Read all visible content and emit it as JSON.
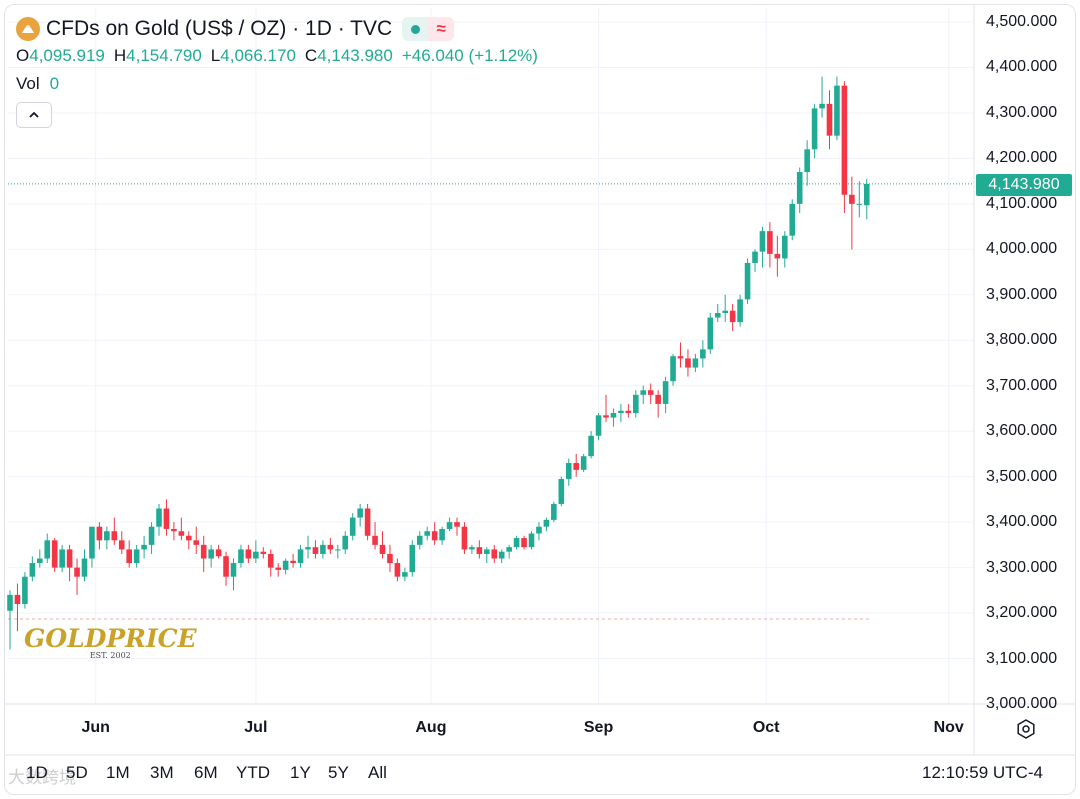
{
  "header": {
    "title": "CFDs on Gold (US$ / OZ) · 1D · TVC",
    "ohlc": [
      {
        "key": "O",
        "value": "4,095.919"
      },
      {
        "key": "H",
        "value": "4,154.790"
      },
      {
        "key": "L",
        "value": "4,066.170"
      },
      {
        "key": "C",
        "value": "4,143.980"
      }
    ],
    "change": "+46.040 (+1.12%)",
    "vol_label": "Vol",
    "vol_value": "0",
    "wave_glyph": "≈"
  },
  "price_tag": "4,143.980",
  "logo": {
    "text": "GOLDPRICE",
    "sub": "EST. 2002"
  },
  "ranges": [
    "1D",
    "5D",
    "1M",
    "3M",
    "6M",
    "YTD",
    "1Y",
    "5Y",
    "All"
  ],
  "clock": "12:10:59 UTC-4",
  "watermark": "大数跨境",
  "colors": {
    "up": "#22ab94",
    "down": "#f23645",
    "grid": "#f0f3fa",
    "text": "#131722"
  },
  "chart_data": {
    "type": "candlestick",
    "title": "CFDs on Gold (US$ / OZ) · 1D · TVC",
    "y_ticks": [
      "4,500.000",
      "4,400.000",
      "4,300.000",
      "4,200.000",
      "4,100.000",
      "4,000.000",
      "3,900.000",
      "3,800.000",
      "3,700.000",
      "3,600.000",
      "3,500.000",
      "3,400.000",
      "3,300.000",
      "3,200.000",
      "3,100.000",
      "3,000.000"
    ],
    "x_ticks": [
      "Jun",
      "Jul",
      "Aug",
      "Sep",
      "Oct",
      "Nov"
    ],
    "ylim": [
      3000,
      4500
    ],
    "last_price": 4143.98,
    "reference_level": 3187,
    "candles": [
      [
        3205,
        3250,
        3120,
        3240
      ],
      [
        3240,
        3265,
        3160,
        3220
      ],
      [
        3220,
        3290,
        3210,
        3280
      ],
      [
        3280,
        3325,
        3270,
        3310
      ],
      [
        3310,
        3340,
        3300,
        3320
      ],
      [
        3320,
        3375,
        3310,
        3360
      ],
      [
        3360,
        3365,
        3290,
        3300
      ],
      [
        3300,
        3350,
        3290,
        3340
      ],
      [
        3340,
        3350,
        3270,
        3300
      ],
      [
        3300,
        3320,
        3240,
        3280
      ],
      [
        3280,
        3340,
        3270,
        3320
      ],
      [
        3320,
        3390,
        3300,
        3390
      ],
      [
        3390,
        3400,
        3340,
        3360
      ],
      [
        3360,
        3390,
        3340,
        3380
      ],
      [
        3380,
        3410,
        3350,
        3360
      ],
      [
        3360,
        3380,
        3330,
        3340
      ],
      [
        3340,
        3360,
        3300,
        3310
      ],
      [
        3310,
        3350,
        3300,
        3340
      ],
      [
        3340,
        3370,
        3320,
        3350
      ],
      [
        3350,
        3400,
        3330,
        3390
      ],
      [
        3390,
        3440,
        3370,
        3430
      ],
      [
        3430,
        3450,
        3370,
        3385
      ],
      [
        3385,
        3400,
        3360,
        3380
      ],
      [
        3380,
        3410,
        3360,
        3370
      ],
      [
        3370,
        3380,
        3340,
        3360
      ],
      [
        3360,
        3390,
        3330,
        3350
      ],
      [
        3350,
        3370,
        3290,
        3320
      ],
      [
        3320,
        3350,
        3300,
        3340
      ],
      [
        3340,
        3350,
        3320,
        3325
      ],
      [
        3325,
        3335,
        3260,
        3280
      ],
      [
        3280,
        3320,
        3250,
        3310
      ],
      [
        3310,
        3350,
        3300,
        3340
      ],
      [
        3340,
        3350,
        3310,
        3320
      ],
      [
        3320,
        3360,
        3310,
        3335
      ],
      [
        3335,
        3345,
        3320,
        3330
      ],
      [
        3330,
        3340,
        3280,
        3300
      ],
      [
        3300,
        3310,
        3280,
        3295
      ],
      [
        3295,
        3320,
        3285,
        3315
      ],
      [
        3315,
        3330,
        3300,
        3310
      ],
      [
        3310,
        3350,
        3300,
        3340
      ],
      [
        3340,
        3370,
        3320,
        3345
      ],
      [
        3345,
        3360,
        3320,
        3330
      ],
      [
        3330,
        3360,
        3320,
        3350
      ],
      [
        3350,
        3365,
        3330,
        3340
      ],
      [
        3340,
        3350,
        3320,
        3340
      ],
      [
        3340,
        3380,
        3330,
        3370
      ],
      [
        3370,
        3420,
        3360,
        3410
      ],
      [
        3410,
        3440,
        3390,
        3430
      ],
      [
        3430,
        3440,
        3360,
        3370
      ],
      [
        3370,
        3400,
        3340,
        3350
      ],
      [
        3350,
        3380,
        3320,
        3330
      ],
      [
        3330,
        3350,
        3290,
        3310
      ],
      [
        3310,
        3320,
        3270,
        3280
      ],
      [
        3280,
        3300,
        3270,
        3290
      ],
      [
        3290,
        3360,
        3280,
        3350
      ],
      [
        3350,
        3380,
        3340,
        3370
      ],
      [
        3370,
        3390,
        3360,
        3380
      ],
      [
        3380,
        3400,
        3350,
        3360
      ],
      [
        3360,
        3390,
        3350,
        3385
      ],
      [
        3385,
        3410,
        3380,
        3400
      ],
      [
        3400,
        3410,
        3370,
        3390
      ],
      [
        3390,
        3400,
        3330,
        3340
      ],
      [
        3340,
        3350,
        3330,
        3345
      ],
      [
        3345,
        3360,
        3320,
        3330
      ],
      [
        3330,
        3345,
        3310,
        3340
      ],
      [
        3340,
        3350,
        3310,
        3320
      ],
      [
        3320,
        3340,
        3310,
        3335
      ],
      [
        3335,
        3350,
        3320,
        3345
      ],
      [
        3345,
        3370,
        3340,
        3365
      ],
      [
        3365,
        3370,
        3340,
        3345
      ],
      [
        3345,
        3380,
        3340,
        3375
      ],
      [
        3375,
        3400,
        3360,
        3390
      ],
      [
        3390,
        3410,
        3380,
        3405
      ],
      [
        3405,
        3445,
        3400,
        3440
      ],
      [
        3440,
        3500,
        3435,
        3495
      ],
      [
        3495,
        3540,
        3480,
        3530
      ],
      [
        3530,
        3550,
        3500,
        3515
      ],
      [
        3515,
        3550,
        3510,
        3545
      ],
      [
        3545,
        3600,
        3540,
        3590
      ],
      [
        3590,
        3640,
        3580,
        3635
      ],
      [
        3635,
        3680,
        3620,
        3630
      ],
      [
        3630,
        3650,
        3610,
        3640
      ],
      [
        3640,
        3660,
        3620,
        3645
      ],
      [
        3645,
        3660,
        3630,
        3640
      ],
      [
        3640,
        3690,
        3630,
        3680
      ],
      [
        3680,
        3700,
        3660,
        3690
      ],
      [
        3690,
        3705,
        3660,
        3680
      ],
      [
        3680,
        3690,
        3630,
        3660
      ],
      [
        3660,
        3720,
        3640,
        3710
      ],
      [
        3710,
        3770,
        3700,
        3765
      ],
      [
        3765,
        3795,
        3740,
        3760
      ],
      [
        3760,
        3780,
        3720,
        3740
      ],
      [
        3740,
        3770,
        3730,
        3760
      ],
      [
        3760,
        3800,
        3740,
        3780
      ],
      [
        3780,
        3860,
        3770,
        3850
      ],
      [
        3850,
        3880,
        3840,
        3860
      ],
      [
        3860,
        3900,
        3840,
        3865
      ],
      [
        3865,
        3880,
        3820,
        3840
      ],
      [
        3840,
        3900,
        3830,
        3890
      ],
      [
        3890,
        3980,
        3880,
        3970
      ],
      [
        3970,
        4000,
        3950,
        3995
      ],
      [
        3995,
        4050,
        3960,
        4040
      ],
      [
        4040,
        4060,
        3960,
        3990
      ],
      [
        3990,
        4030,
        3940,
        3980
      ],
      [
        3980,
        4040,
        3960,
        4030
      ],
      [
        4030,
        4110,
        4020,
        4100
      ],
      [
        4100,
        4180,
        4080,
        4170
      ],
      [
        4170,
        4240,
        4140,
        4220
      ],
      [
        4220,
        4320,
        4200,
        4310
      ],
      [
        4310,
        4380,
        4290,
        4320
      ],
      [
        4320,
        4350,
        4220,
        4250
      ],
      [
        4250,
        4380,
        4240,
        4360
      ],
      [
        4360,
        4370,
        4080,
        4120
      ],
      [
        4120,
        4160,
        4000,
        4100
      ],
      [
        4100,
        4150,
        4070,
        4100
      ],
      [
        4097,
        4155,
        4066,
        4144
      ]
    ]
  }
}
